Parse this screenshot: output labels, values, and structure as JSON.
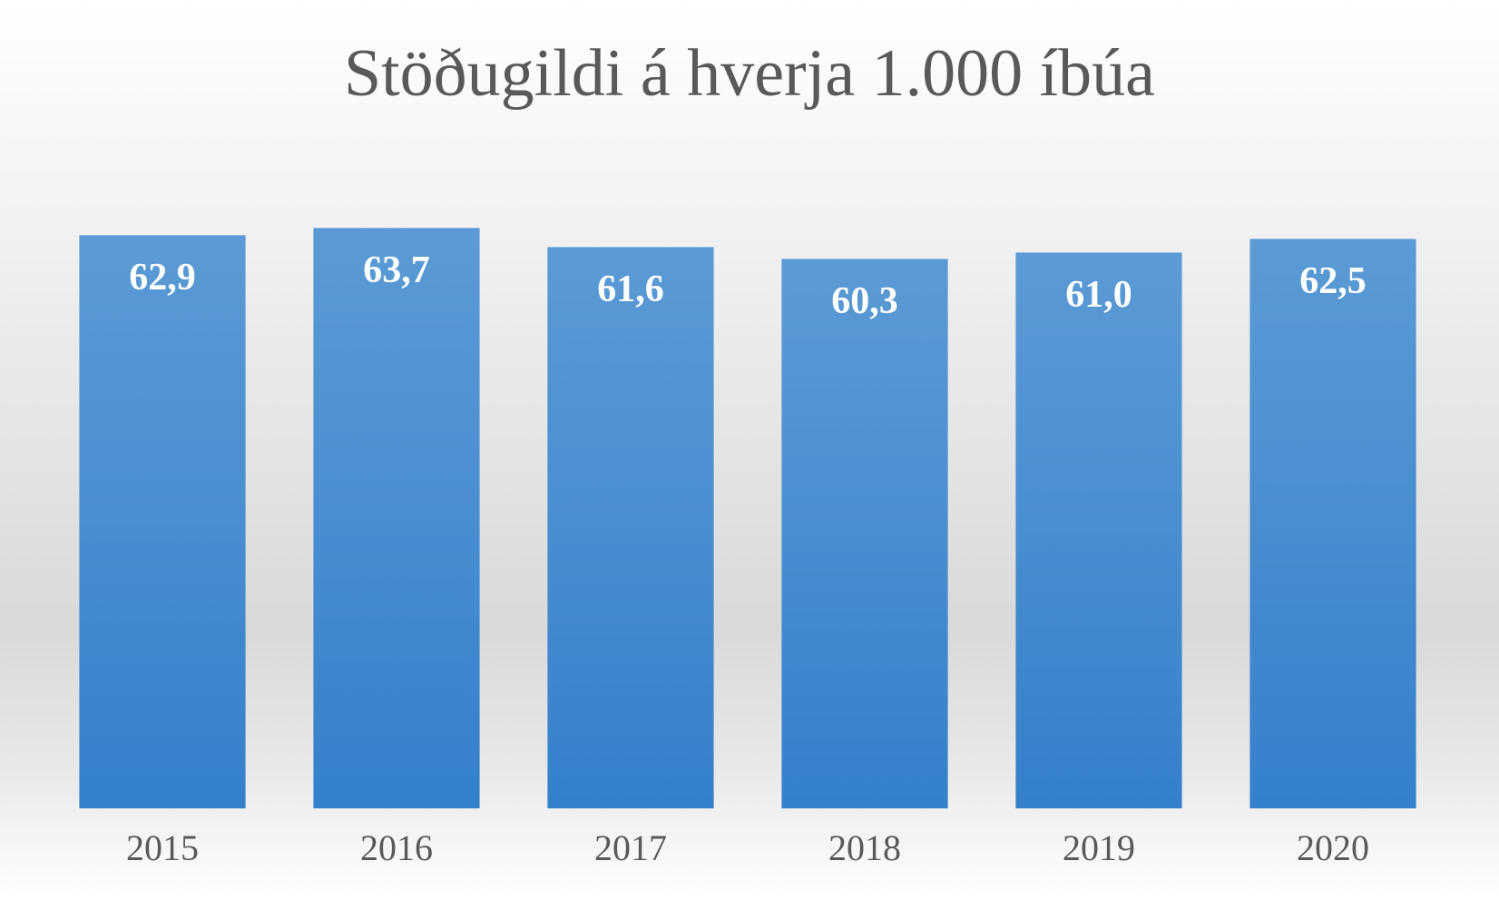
{
  "chart_data": {
    "type": "bar",
    "title": "Stöðugildi á hverja 1.000 íbúa",
    "categories": [
      "2015",
      "2016",
      "2017",
      "2018",
      "2019",
      "2020"
    ],
    "values": [
      62.9,
      63.7,
      61.6,
      60.3,
      61.0,
      62.5
    ],
    "value_labels": [
      "62,9",
      "63,7",
      "61,6",
      "60,3",
      "61,0",
      "62,5"
    ],
    "color": "#4a8fd4",
    "ylim": [
      0,
      70
    ]
  }
}
